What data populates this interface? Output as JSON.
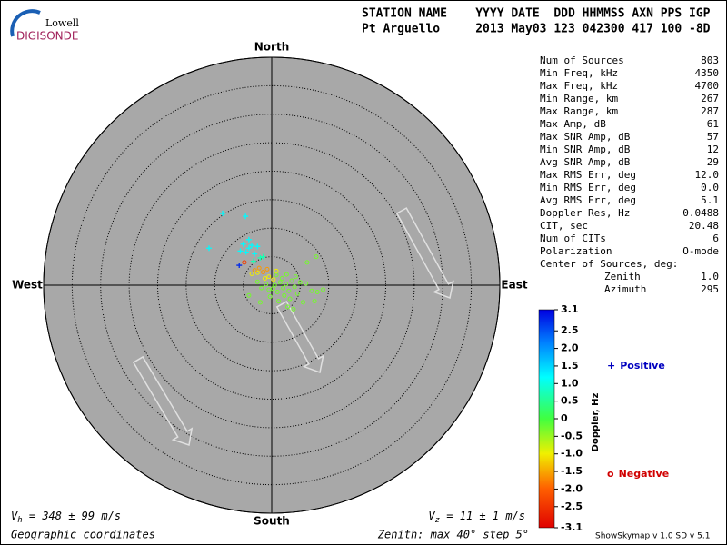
{
  "logo": {
    "top": "Lowell",
    "bottom": "DIGISONDE"
  },
  "header": {
    "line1": "STATION NAME    YYYY DATE  DDD HHMMSS AXN PPS IGP",
    "line2": "Pt Arguello     2013 May03 123 042300 417 100 -8D"
  },
  "stats": {
    "rows": [
      [
        "Num of Sources",
        "803"
      ],
      [
        "Min Freq, kHz",
        "4350"
      ],
      [
        "Max Freq, kHz",
        "4700"
      ],
      [
        "Min Range, km",
        "267"
      ],
      [
        "Max Range, km",
        "287"
      ],
      [
        "Max Amp, dB",
        "61"
      ],
      [
        "Max SNR Amp, dB",
        "57"
      ],
      [
        "Min SNR Amp, dB",
        "12"
      ],
      [
        "Avg SNR Amp, dB",
        "29"
      ],
      [
        "Max RMS Err, deg",
        "12.0"
      ],
      [
        "Min RMS Err, deg",
        "0.0"
      ],
      [
        "Avg RMS Err, deg",
        "5.1"
      ],
      [
        "Doppler Res, Hz",
        "0.0488"
      ],
      [
        "CIT, sec",
        "20.48"
      ],
      [
        "Num of CITs",
        "6"
      ],
      [
        "Polarization",
        "O-mode"
      ]
    ],
    "center": {
      "label": "Center of Sources, deg:",
      "rows": [
        [
          "Zenith",
          "1.0"
        ],
        [
          "Azimuth",
          "295"
        ]
      ]
    }
  },
  "footer": {
    "vh_symbol": "V",
    "vh_sub": "h",
    "vh_text": " = 348 ± 99 m/s",
    "vz_symbol": "V",
    "vz_sub": "z",
    "vz_text": " = 11 ± 1 m/s",
    "coords": "Geographic coordinates",
    "zenith": "Zenith: max 40°  step 5°",
    "version": "ShowSkymap v 1.0  SD v 5.1"
  },
  "chart_data": {
    "type": "scatter",
    "directions": {
      "north": "North",
      "south": "South",
      "east": "East",
      "west": "West"
    },
    "xlim": [
      -40,
      40
    ],
    "ylim": [
      -40,
      40
    ],
    "rticks": [
      5,
      10,
      15,
      20,
      25,
      30,
      35,
      40
    ],
    "clim": [
      -3.1,
      3.1
    ],
    "colorbar_label": "Doppler, Hz",
    "cticks": [
      3.1,
      2.5,
      {
        "value": 2.0,
        "label": "2.0"
      },
      1.5,
      {
        "value": 1.0,
        "label": "1.0"
      },
      0.5,
      0,
      -0.5,
      {
        "value": -1.0,
        "label": "-1.0"
      },
      -1.5,
      {
        "value": -2.0,
        "label": "-2.0"
      },
      -2.5,
      -3.1
    ],
    "series": [
      {
        "name": "Positive",
        "symbol": "+",
        "color": "#0000c0",
        "x": [
          -4.0,
          -5.0,
          -3.5,
          -4.5,
          -3.0,
          -2.5,
          -5.5,
          -8.6,
          -4.6,
          -11,
          -4.0,
          -2.0,
          -3.2,
          -1.5,
          -5.7
        ],
        "values": [
          6.5,
          7.2,
          7.0,
          5.8,
          5.5,
          6.8,
          6.0,
          12.6,
          12.1,
          6.5,
          8.0,
          4.8,
          4.2,
          5.0,
          3.5
        ],
        "doppler": [
          1.2,
          1.2,
          1.2,
          1.2,
          1.2,
          1.2,
          1.2,
          1.2,
          1.2,
          1.2,
          1.2,
          0.7,
          0.7,
          0.7,
          2.8
        ]
      },
      {
        "name": "Negative",
        "symbol": "o",
        "color": "#d00000",
        "x": [
          1.5,
          2.0,
          2.5,
          3.0,
          1.0,
          0.5,
          3.5,
          4.0,
          2.2,
          1.8,
          0.2,
          -0.5,
          -1.0,
          4.5,
          5.0,
          3.2,
          1.2,
          -0.3,
          -1.8,
          -2.5,
          6.0,
          7.0,
          8.0,
          7.5,
          5.5,
          2.8,
          -2.0,
          0.8,
          2.6,
          4.2,
          7.8,
          9.0,
          -4.0,
          3.8,
          6.2,
          -0.5,
          0.3,
          -1.2,
          0.8,
          -2.5,
          -3.5,
          -1.5,
          -2.2,
          -0.8,
          -3.0,
          -4.8
        ],
        "values": [
          0.5,
          -0.5,
          0.2,
          -1.0,
          -1.2,
          0,
          0.8,
          -0.3,
          -1.8,
          1.2,
          -0.6,
          -0.8,
          0.2,
          -1.5,
          0.5,
          -2.4,
          -2.8,
          -2.0,
          -0.5,
          0.6,
          0.3,
          -1.0,
          -1.2,
          -2.8,
          -3.0,
          -3.8,
          -3.0,
          1.8,
          1.9,
          1.5,
          5.0,
          -0.8,
          -1.8,
          -4.2,
          4.0,
          1.5,
          1.0,
          1.2,
          2.5,
          2.2,
          2.0,
          2.3,
          3.0,
          2.8,
          2.6,
          4.0
        ],
        "doppler": [
          -0.3,
          -0.3,
          -0.3,
          -0.3,
          -0.3,
          -0.3,
          -0.3,
          -0.3,
          -0.3,
          -0.3,
          -0.3,
          -0.3,
          -0.3,
          -0.3,
          -0.3,
          -0.3,
          -0.3,
          -0.3,
          -0.3,
          -0.3,
          -0.3,
          -0.3,
          -0.3,
          -0.3,
          -0.3,
          -0.3,
          -0.3,
          -0.3,
          -0.3,
          -0.3,
          -0.3,
          -0.3,
          -0.3,
          -0.3,
          -0.3,
          -1.0,
          -1.0,
          -1.0,
          -1.0,
          -1.0,
          -1.0,
          -1.6,
          -1.6,
          -1.6,
          -1.6,
          -2.4
        ]
      }
    ]
  }
}
